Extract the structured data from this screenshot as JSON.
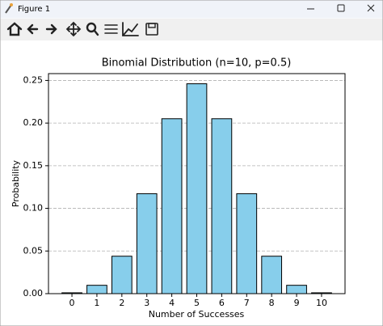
{
  "window": {
    "title": "Figure 1"
  },
  "chart_data": {
    "type": "bar",
    "title": "Binomial Distribution (n=10, p=0.5)",
    "x_label": "Number of Successes",
    "y_label": "Probability",
    "categories": [
      "0",
      "1",
      "2",
      "3",
      "4",
      "5",
      "6",
      "7",
      "8",
      "9",
      "10"
    ],
    "values": [
      0.001,
      0.0098,
      0.0439,
      0.1172,
      0.2051,
      0.2461,
      0.2051,
      0.1172,
      0.0439,
      0.0098,
      0.001
    ],
    "color": "#87ceeb",
    "edge_color": "#000000",
    "ylim": [
      0,
      0.258
    ],
    "yticks": [
      {
        "value": 0,
        "label": "0.00"
      },
      {
        "value": 0.05,
        "label": "0.05"
      },
      {
        "value": 0.1,
        "label": "0.10"
      },
      {
        "value": 0.15,
        "label": "0.15"
      },
      {
        "value": 0.2,
        "label": "0.20"
      },
      {
        "value": 0.25,
        "label": "0.25"
      }
    ],
    "grid": true
  }
}
